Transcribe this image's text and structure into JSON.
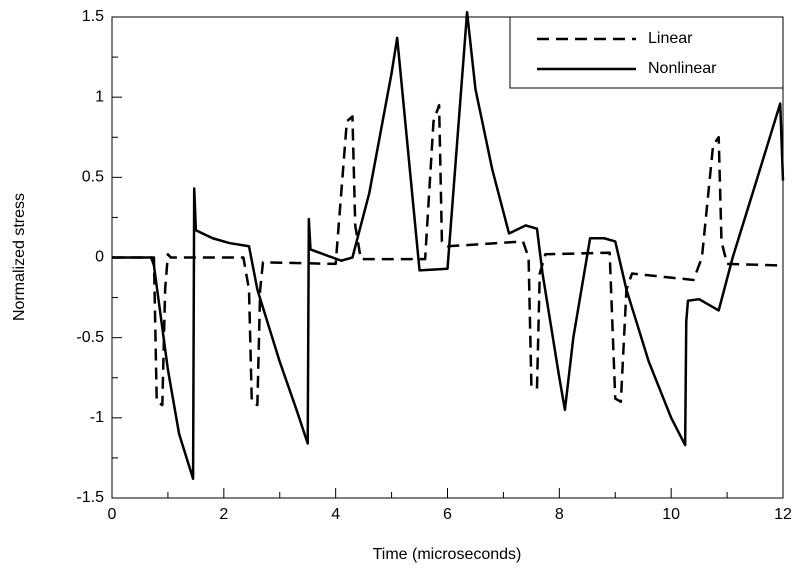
{
  "chart_data": {
    "type": "line",
    "xlabel": "Time (microseconds)",
    "ylabel": "Normalized stress",
    "xlim": [
      0,
      12
    ],
    "xticks": [
      0,
      2,
      4,
      6,
      8,
      10,
      12
    ],
    "xminorticks": [
      1,
      3,
      5,
      7,
      9,
      11
    ],
    "ylim": [
      -1.5,
      1.5
    ],
    "yticks": [
      -1.5,
      -1,
      -0.5,
      0,
      0.5,
      1,
      1.5
    ],
    "yminorticks": [
      -1.25,
      -0.75,
      -0.25,
      0.25,
      0.75,
      1.25
    ],
    "legend": "upper right",
    "series": [
      {
        "name": "Linear",
        "color": "#000000",
        "dashed": true,
        "x": [
          0,
          0.75,
          0.8,
          0.9,
          0.95,
          1.0,
          1.05,
          2.35,
          2.45,
          2.5,
          2.6,
          2.65,
          2.7,
          4.0,
          4.2,
          4.3,
          4.35,
          4.45,
          5.6,
          5.75,
          5.85,
          5.9,
          6.0,
          7.35,
          7.45,
          7.5,
          7.6,
          7.65,
          7.75,
          8.9,
          9.0,
          9.1,
          9.2,
          9.3,
          10.4,
          10.55,
          10.75,
          10.85,
          10.9,
          11.0,
          12.0
        ],
        "values": [
          0,
          0,
          -0.9,
          -0.92,
          -0.2,
          0.02,
          0,
          0,
          -0.2,
          -0.9,
          -0.92,
          -0.2,
          -0.03,
          -0.04,
          0.85,
          0.88,
          0.2,
          -0.01,
          -0.01,
          0.85,
          0.95,
          0.1,
          0.07,
          0.1,
          0,
          -0.8,
          -0.82,
          -0.1,
          0.02,
          0.03,
          -0.88,
          -0.9,
          -0.2,
          -0.1,
          -0.14,
          0.0,
          0.7,
          0.75,
          0.1,
          -0.04,
          -0.05
        ]
      },
      {
        "name": "Nonlinear",
        "color": "#000000",
        "dashed": false,
        "x": [
          0,
          0.7,
          0.75,
          1.0,
          1.2,
          1.45,
          1.47,
          1.5,
          1.8,
          2.1,
          2.45,
          2.6,
          3.0,
          3.3,
          3.5,
          3.52,
          3.55,
          4.1,
          4.3,
          4.6,
          5.0,
          5.1,
          5.5,
          6.0,
          6.35,
          6.5,
          6.8,
          7.1,
          7.4,
          7.6,
          7.7,
          8.0,
          8.1,
          8.25,
          8.55,
          8.8,
          9.0,
          9.2,
          9.6,
          10.0,
          10.25,
          10.27,
          10.3,
          10.5,
          10.85,
          11.1,
          11.5,
          11.95,
          12.0
        ],
        "values": [
          0,
          0,
          -0.05,
          -0.7,
          -1.1,
          -1.38,
          0.43,
          0.17,
          0.12,
          0.09,
          0.07,
          -0.2,
          -0.65,
          -0.95,
          -1.16,
          0.24,
          0.05,
          -0.02,
          0.0,
          0.4,
          1.15,
          1.37,
          -0.08,
          -0.07,
          1.53,
          1.05,
          0.55,
          0.15,
          0.2,
          0.18,
          -0.1,
          -0.75,
          -0.95,
          -0.5,
          0.12,
          0.12,
          0.1,
          -0.2,
          -0.65,
          -1.0,
          -1.17,
          -0.4,
          -0.27,
          -0.26,
          -0.33,
          0.0,
          0.45,
          0.96,
          0.48
        ]
      }
    ]
  }
}
